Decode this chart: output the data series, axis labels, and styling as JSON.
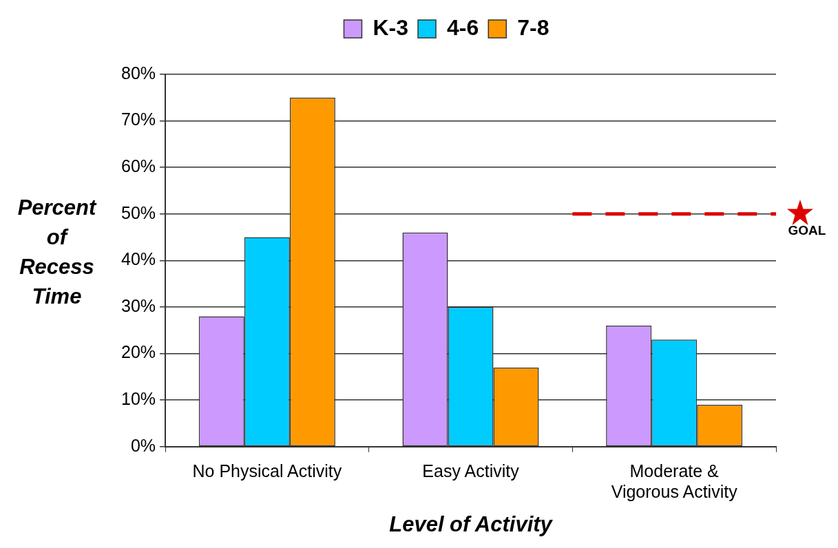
{
  "chart_data": {
    "type": "bar",
    "categories": [
      "No Physical Activity",
      "Easy Activity",
      "Moderate & Vigorous Activity"
    ],
    "series": [
      {
        "name": "K-3",
        "color": "#cc99ff",
        "values": [
          28,
          46,
          26
        ]
      },
      {
        "name": "4-6",
        "color": "#00ccff",
        "values": [
          45,
          30,
          23
        ]
      },
      {
        "name": "7-8",
        "color": "#ff9900",
        "values": [
          75,
          17,
          9
        ]
      }
    ],
    "xlabel": "Level of Activity",
    "ylabel": "Percent of Recess Time",
    "ylim": [
      0,
      80
    ],
    "yticks": [
      {
        "value": 0,
        "label": "0%"
      },
      {
        "value": 10,
        "label": "10%"
      },
      {
        "value": 20,
        "label": "20%"
      },
      {
        "value": 30,
        "label": "30%"
      },
      {
        "value": 40,
        "label": "40%"
      },
      {
        "value": 50,
        "label": "50%"
      },
      {
        "value": 60,
        "label": "60%"
      },
      {
        "value": 70,
        "label": "70%"
      },
      {
        "value": 80,
        "label": "80%"
      }
    ],
    "ref_lines": [
      {
        "axis": "y",
        "value": 50,
        "label": "GOAL",
        "color": "#dd0000",
        "line_style": "dashed"
      }
    ],
    "grid": "y",
    "legend": "top"
  }
}
